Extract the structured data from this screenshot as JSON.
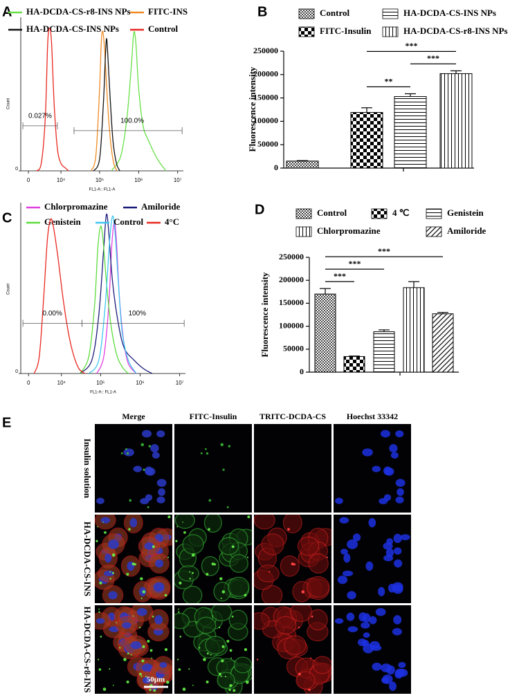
{
  "chart_data": [
    {
      "type": "flow",
      "panel": "A",
      "xlabel": "FL1-A:: FL1-A",
      "ylabel": "Count",
      "xscale": "biexponential",
      "xlim": [
        -1400,
        14000000
      ],
      "ylim": [
        0,
        100
      ],
      "xticks": [
        0,
        {
          "value": 10000,
          "label": "10⁴"
        },
        {
          "value": 100000,
          "label": "10⁵"
        },
        {
          "value": 1000000,
          "label": "10⁶"
        },
        {
          "value": 10000000,
          "label": "10⁷"
        }
      ],
      "yticks": [
        0
      ],
      "series": [
        {
          "name": "HA-DCDA-CS-r8-INS NPs",
          "color": "#66e045",
          "x": [
            200000,
            350000,
            500000,
            650000,
            750000,
            850000,
            1000000,
            1300000,
            1800000,
            3000000,
            5000000
          ],
          "values": [
            0,
            10,
            35,
            70,
            92,
            85,
            55,
            30,
            20,
            8,
            0
          ]
        },
        {
          "name": "FITC-INS",
          "color": "#f08a24",
          "x": [
            60000,
            80000,
            100000,
            110000,
            120000,
            135000,
            160000,
            190000,
            230000,
            280000
          ],
          "values": [
            0,
            10,
            55,
            85,
            93,
            80,
            45,
            20,
            5,
            0
          ]
        },
        {
          "name": "HA-DCDA-CS-INS NPs",
          "color": "#111111",
          "x": [
            70000,
            100000,
            125000,
            140000,
            150000,
            160000,
            185000,
            220000,
            270000,
            330000
          ],
          "values": [
            0,
            8,
            45,
            75,
            88,
            80,
            50,
            20,
            5,
            0
          ]
        },
        {
          "name": "Control",
          "color": "#e8261f",
          "x": [
            1500,
            2500,
            3500,
            4200,
            4800,
            5500,
            6500,
            8000,
            10000,
            13000,
            16000
          ],
          "values": [
            0,
            5,
            35,
            85,
            95,
            85,
            45,
            15,
            5,
            2,
            0
          ]
        }
      ],
      "gates": [
        {
          "label": "0.027%",
          "range": [
            -1000,
            8000
          ]
        },
        {
          "label": "100.0%",
          "range": [
            22000,
            13000000
          ]
        }
      ]
    },
    {
      "type": "bar",
      "panel": "B",
      "ylabel": "Fluorescence intensity",
      "ylim": [
        0,
        250000
      ],
      "yticks": [
        0,
        50000,
        100000,
        150000,
        200000,
        250000
      ],
      "series": [
        {
          "name": "Control",
          "pattern": "fine-check",
          "values": [
            15000
          ],
          "errors": [
            1000
          ]
        },
        {
          "name": "FITC-Insulin",
          "pattern": "checker",
          "values": [
            119000
          ],
          "errors": [
            10000
          ]
        },
        {
          "name": "HA-DCDA-CS-INS NPs",
          "pattern": "horizontal",
          "values": [
            153000
          ],
          "errors": [
            6000
          ]
        },
        {
          "name": "HA-DCDA-CS-r8-INS NPs",
          "pattern": "vertical",
          "values": [
            202000
          ],
          "errors": [
            6000
          ]
        }
      ],
      "significance": [
        {
          "bars": [
            1,
            2
          ],
          "label": "**"
        },
        {
          "bars": [
            2,
            3
          ],
          "label": "***"
        },
        {
          "bars": [
            1,
            3
          ],
          "label": "***"
        }
      ]
    },
    {
      "type": "flow",
      "panel": "C",
      "xlabel": "FL1-A:: FL1-A",
      "ylabel": "Count",
      "xscale": "biexponential",
      "xlim": [
        -1400,
        14000000
      ],
      "ylim": [
        0,
        100
      ],
      "xticks": [
        0,
        {
          "value": 10000,
          "label": "10⁴"
        },
        {
          "value": 100000,
          "label": "10⁵"
        },
        {
          "value": 1000000,
          "label": "10⁶"
        },
        {
          "value": 10000000,
          "label": "10⁷"
        }
      ],
      "yticks": [
        0
      ],
      "series": [
        {
          "name": "Chlorpromazine",
          "color": "#e040e0",
          "x": [
            80000,
            120000,
            160000,
            190000,
            220000,
            250000,
            300000,
            380000,
            500000,
            800000
          ],
          "values": [
            0,
            10,
            40,
            75,
            90,
            80,
            45,
            20,
            6,
            0
          ]
        },
        {
          "name": "Amiloride",
          "color": "#1a1a7a",
          "x": [
            30000,
            60000,
            90000,
            120000,
            140000,
            160000,
            200000,
            280000,
            400000,
            700000,
            1200000,
            2000000
          ],
          "values": [
            0,
            8,
            35,
            75,
            95,
            85,
            55,
            30,
            15,
            8,
            3,
            0
          ]
        },
        {
          "name": "Genistein",
          "color": "#5cdc3c",
          "x": [
            30000,
            50000,
            70000,
            85000,
            100000,
            115000,
            140000,
            180000,
            250000,
            350000,
            500000
          ],
          "values": [
            0,
            10,
            40,
            75,
            88,
            80,
            55,
            30,
            12,
            4,
            0
          ]
        },
        {
          "name": "Control",
          "color": "#3ec6f0",
          "x": [
            50000,
            90000,
            130000,
            170000,
            200000,
            230000,
            280000,
            350000,
            500000,
            800000
          ],
          "values": [
            0,
            8,
            40,
            80,
            94,
            85,
            55,
            25,
            8,
            0
          ]
        },
        {
          "name": "4°C",
          "color": "#e8261f",
          "x": [
            1000,
            2000,
            3000,
            4000,
            5000,
            6000,
            8000,
            11000,
            15000,
            20000,
            28000,
            40000
          ],
          "values": [
            0,
            10,
            45,
            80,
            92,
            88,
            70,
            45,
            25,
            12,
            3,
            0
          ]
        }
      ],
      "gates": [
        {
          "label": "0.00%",
          "range": [
            -1000,
            33600
          ]
        },
        {
          "label": "100%",
          "range": [
            33600,
            13000000
          ]
        }
      ]
    },
    {
      "type": "bar",
      "panel": "D",
      "ylabel": "Fluorescence intensity",
      "ylim": [
        0,
        250000
      ],
      "yticks": [
        0,
        50000,
        100000,
        150000,
        200000,
        250000
      ],
      "series": [
        {
          "name": "Control",
          "pattern": "fine-check",
          "values": [
            170000
          ],
          "errors": [
            12000
          ]
        },
        {
          "name": "4 ℃",
          "pattern": "checker",
          "values": [
            34000
          ],
          "errors": [
            1000
          ]
        },
        {
          "name": "Genistein",
          "pattern": "horizontal",
          "values": [
            88000
          ],
          "errors": [
            4000
          ]
        },
        {
          "name": "Chlorpromazine",
          "pattern": "vertical",
          "values": [
            184000
          ],
          "errors": [
            13000
          ]
        },
        {
          "name": "Amiloride",
          "pattern": "diagonal",
          "values": [
            127000
          ],
          "errors": [
            3000
          ]
        }
      ],
      "significance": [
        {
          "bars": [
            0,
            1
          ],
          "label": "***"
        },
        {
          "bars": [
            0,
            2
          ],
          "label": "***"
        },
        {
          "bars": [
            0,
            4
          ],
          "label": "***"
        }
      ]
    }
  ],
  "panel_e": {
    "panel": "E",
    "columns": [
      "Merge",
      "FITC-Insulin",
      "TRITC-DCDA-CS",
      "Hoechst 33342"
    ],
    "rows": [
      "Insulin solution",
      "HA-DCDA-CS-INS",
      "HA-DCDA-CS-r8-INS"
    ],
    "scale_bar": "50μm"
  }
}
